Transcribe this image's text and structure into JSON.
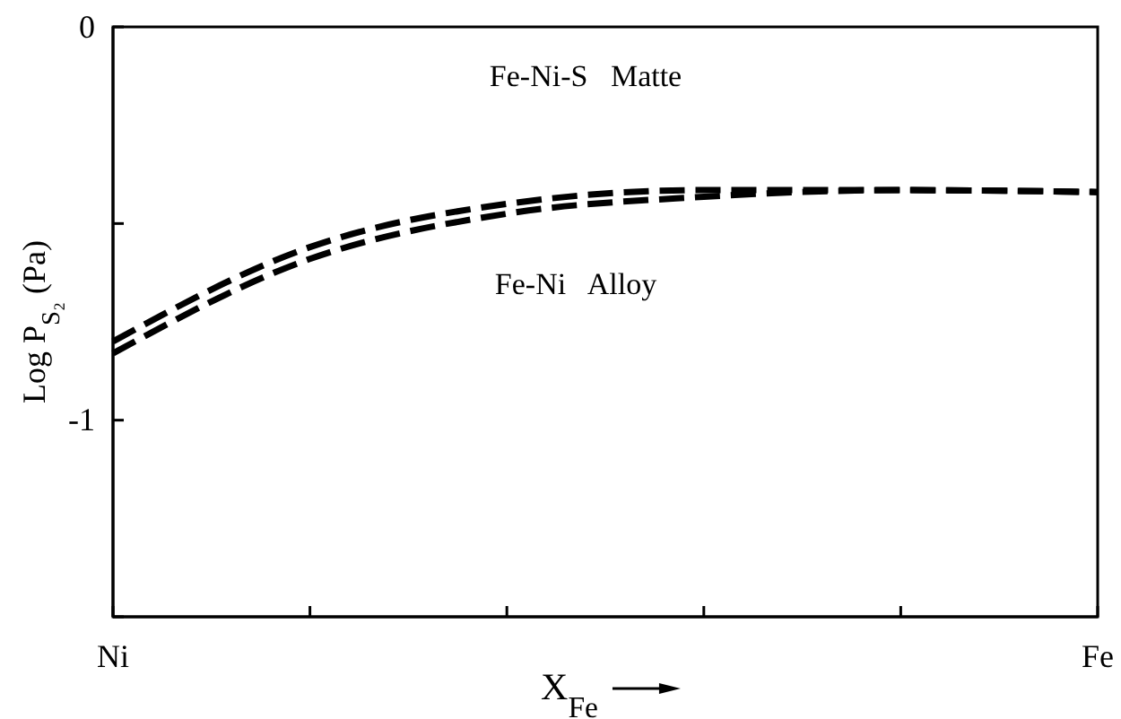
{
  "chart_data": {
    "type": "line",
    "xlabel": "X$_{Fe}$",
    "ylabel": "Log P$_{S₂}$ (Pa)",
    "categories": [
      "Ni",
      null,
      null,
      null,
      null,
      "Fe"
    ],
    "ylim": [
      -1.5,
      0
    ],
    "yticks": [
      0,
      {
        "value": -0.5,
        "label": null
      },
      -1,
      {
        "value": -1.5,
        "label": null
      }
    ],
    "line_style": "dashed",
    "annotations": [
      "Fe-Ni-S   Matte",
      "Fe-Ni   Alloy"
    ],
    "series": [
      {
        "color": "#000000",
        "values": [
          -0.8,
          -0.56,
          -0.45,
          -0.415,
          -0.415,
          -0.42
        ]
      },
      {
        "color": "#000000",
        "values": [
          -0.83,
          -0.59,
          -0.475,
          -0.432,
          -0.415,
          -0.42
        ]
      }
    ]
  }
}
